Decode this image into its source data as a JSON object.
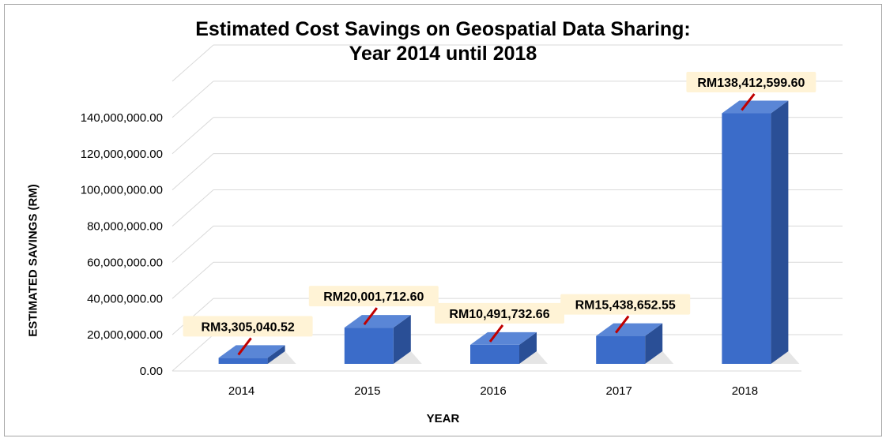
{
  "chart_data": {
    "type": "bar",
    "title": "Estimated Cost Savings on Geospatial Data Sharing:",
    "subtitle": "Year 2014 until 2018",
    "xlabel": "YEAR",
    "ylabel": "ESTIMATED SAVINGS (RM)",
    "categories": [
      "2014",
      "2015",
      "2016",
      "2017",
      "2018"
    ],
    "values": [
      3305040.52,
      20001712.6,
      10491732.66,
      15438652.55,
      138412599.6
    ],
    "data_labels": [
      "RM3,305,040.52",
      "RM20,001,712.60",
      "RM10,491,732.66",
      "RM15,438,652.55",
      "RM138,412,599.60"
    ],
    "yticks": [
      0,
      20000000,
      40000000,
      60000000,
      80000000,
      100000000,
      120000000,
      140000000
    ],
    "ytick_labels": [
      "0.00",
      "20,000,000.00",
      "40,000,000.00",
      "60,000,000.00",
      "80,000,000.00",
      "100,000,000.00",
      "120,000,000.00",
      "140,000,000.00"
    ],
    "ylim": [
      0,
      160000000
    ],
    "grid": true,
    "legend": "none",
    "style": "3d-column",
    "colors": {
      "bar_front": "#3b6cc9",
      "bar_top": "#5a86d6",
      "bar_side": "#2a4f96",
      "label_bg": "#fff3d6",
      "leader_line": "#c00000",
      "grid": "#d9d9d9"
    }
  }
}
